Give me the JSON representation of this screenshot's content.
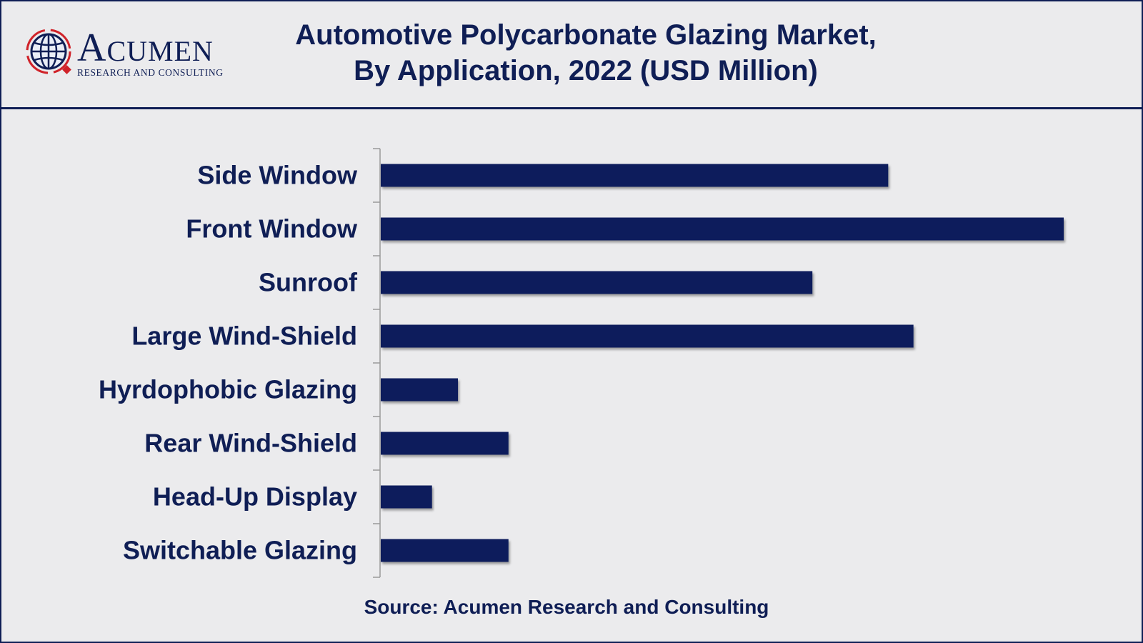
{
  "brand": {
    "name_initial": "A",
    "name_rest": "CUMEN",
    "tagline": "RESEARCH AND CONSULTING",
    "logo_icon": "globe-icon"
  },
  "colors": {
    "navy": "#0f1e55",
    "bar": "#0b1f5c",
    "accent_red": "#d0232a",
    "background": "#ebebed"
  },
  "chart_data": {
    "type": "bar",
    "orientation": "horizontal",
    "title": "Automotive Polycarbonate Glazing Market, By Application, 2022 (USD Million)",
    "title_lines": [
      "Automotive Polycarbonate Glazing Market,",
      "By Application, 2022 (USD Million)"
    ],
    "categories": [
      "Side Window",
      "Front Window",
      "Sunroof",
      "Large Wind-Shield",
      "Hyrdophobic Glazing",
      "Rear Wind-Shield",
      "Head-Up Display",
      "Switchable Glazing"
    ],
    "values": [
      74.3,
      100,
      63.2,
      78,
      11.3,
      18.7,
      7.5,
      18.7
    ],
    "xlim": [
      0,
      100
    ],
    "grid": false,
    "legend": "none"
  },
  "source": "Source: Acumen Research and Consulting"
}
